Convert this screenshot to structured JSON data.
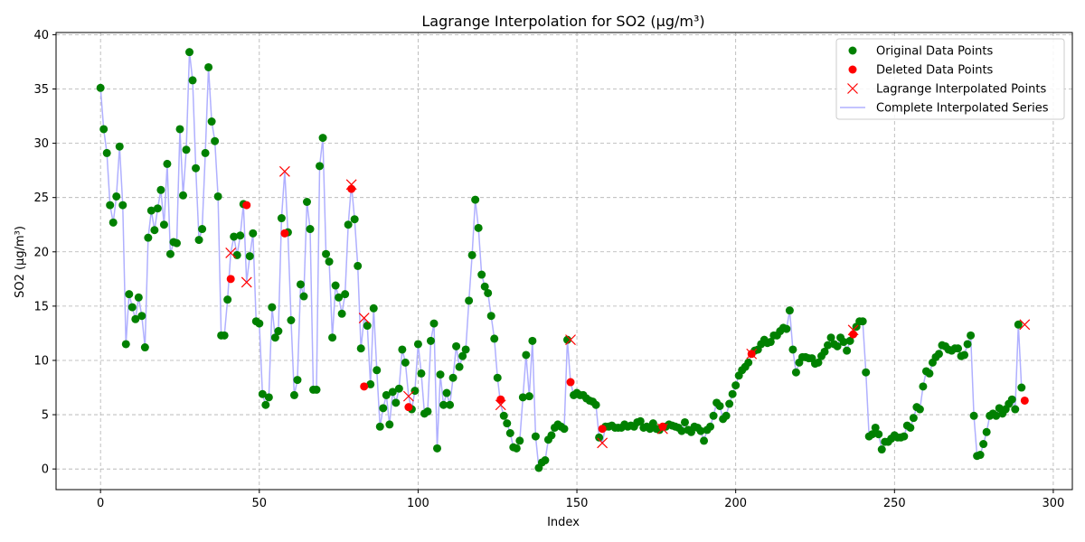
{
  "chart_data": {
    "type": "scatter",
    "title": "Lagrange Interpolation for SO2 (µg/m³)",
    "xlabel": "Index",
    "ylabel": "SO2 (µg/m³)",
    "xlim": [
      -14,
      306
    ],
    "ylim": [
      -1.9,
      40.2
    ],
    "x_ticks": [
      0,
      50,
      100,
      150,
      200,
      250,
      300
    ],
    "y_ticks": [
      0,
      5,
      10,
      15,
      20,
      25,
      30,
      35,
      40
    ],
    "grid": true,
    "legend_position": "top-right",
    "legend": [
      {
        "label": "Original Data Points",
        "color": "#008000",
        "marker": "circle"
      },
      {
        "label": "Deleted Data Points",
        "color": "#ff0000",
        "marker": "circle"
      },
      {
        "label": "Lagrange Interpolated Points",
        "color": "#ff0000",
        "marker": "x"
      },
      {
        "label": "Complete Interpolated Series",
        "color": "#b0b0ff",
        "marker": "line"
      }
    ],
    "series_values": [
      35.1,
      31.3,
      29.1,
      24.3,
      22.7,
      25.1,
      29.7,
      24.3,
      11.5,
      16.1,
      14.9,
      13.8,
      15.8,
      14.1,
      11.2,
      21.3,
      23.8,
      22.0,
      24.0,
      25.7,
      22.5,
      28.1,
      19.8,
      20.9,
      20.8,
      31.3,
      25.2,
      29.4,
      38.4,
      35.8,
      27.7,
      21.1,
      22.1,
      29.1,
      37.0,
      32.0,
      30.2,
      25.1,
      12.3,
      12.3,
      15.6,
      19.9,
      21.4,
      19.7,
      21.5,
      24.4,
      17.2,
      19.6,
      21.7,
      13.6,
      13.4,
      6.9,
      5.9,
      6.6,
      14.9,
      12.1,
      12.7,
      23.1,
      27.4,
      21.8,
      13.7,
      6.8,
      8.2,
      17.0,
      15.9,
      24.6,
      22.1,
      7.3,
      7.3,
      27.9,
      30.5,
      19.8,
      19.1,
      12.1,
      16.9,
      15.8,
      14.3,
      16.1,
      22.5,
      26.2,
      23.0,
      18.7,
      11.1,
      13.9,
      13.2,
      7.8,
      14.8,
      9.1,
      3.9,
      5.6,
      6.8,
      4.1,
      7.1,
      6.1,
      7.4,
      11.0,
      9.8,
      6.7,
      5.5,
      7.2,
      11.5,
      8.8,
      5.1,
      5.3,
      11.8,
      13.4,
      1.9,
      8.7,
      5.9,
      7.0,
      5.9,
      8.4,
      11.3,
      9.4,
      10.4,
      11.0,
      15.5,
      19.7,
      24.8,
      22.2,
      17.9,
      16.8,
      16.2,
      14.1,
      12.0,
      8.4,
      5.9,
      4.9,
      4.2,
      3.3,
      2.0,
      1.9,
      2.6,
      6.6,
      10.5,
      6.7,
      11.8,
      3.0,
      0.1,
      0.6,
      0.8,
      2.7,
      3.1,
      3.8,
      4.1,
      3.9,
      3.7,
      11.9,
      8.0,
      6.8,
      7.0,
      6.8,
      6.8,
      6.5,
      6.3,
      6.2,
      5.9,
      2.9,
      2.4,
      3.9,
      3.9,
      4.0,
      3.8,
      3.8,
      3.8,
      4.1,
      3.9,
      4.0,
      3.9,
      4.3,
      4.4,
      3.8,
      3.9,
      3.7,
      4.2,
      3.7,
      3.6,
      3.8,
      3.9,
      4.1,
      4.0,
      3.9,
      3.8,
      3.5,
      4.3,
      3.6,
      3.4,
      3.9,
      3.8,
      3.5,
      2.6,
      3.6,
      3.9,
      4.9,
      6.1,
      5.8,
      4.6,
      4.9,
      6.0,
      6.9,
      7.7,
      8.6,
      9.1,
      9.4,
      9.8,
      10.6,
      10.9,
      11.0,
      11.5,
      11.9,
      11.6,
      11.7,
      12.3,
      12.3,
      12.7,
      13.0,
      12.9,
      14.6,
      11.0,
      8.9,
      9.8,
      10.3,
      10.3,
      10.2,
      10.2,
      9.7,
      9.8,
      10.4,
      10.8,
      11.4,
      12.1,
      11.5,
      11.3,
      12.1,
      11.7,
      10.9,
      11.8,
      12.8,
      13.1,
      13.6,
      13.6,
      8.9,
      3.0,
      3.2,
      3.8,
      3.2,
      1.8,
      2.5,
      2.5,
      2.8,
      3.1,
      2.9,
      2.9,
      3.0,
      4.0,
      3.8,
      4.7,
      5.7,
      5.5,
      7.6,
      9.0,
      8.8,
      9.8,
      10.3,
      10.6,
      11.4,
      11.3,
      11.0,
      10.9,
      11.1,
      11.1,
      10.4,
      10.5,
      11.5,
      12.3,
      4.9,
      1.2,
      1.3,
      2.3,
      3.4,
      4.9,
      5.1,
      4.9,
      5.6,
      5.1,
      5.5,
      6.0,
      6.4,
      5.5,
      13.3,
      7.5
    ],
    "deleted_points": [
      {
        "x": 41,
        "y": 17.5
      },
      {
        "x": 46,
        "y": 24.3
      },
      {
        "x": 58,
        "y": 21.7
      },
      {
        "x": 79,
        "y": 25.8
      },
      {
        "x": 83,
        "y": 7.6
      },
      {
        "x": 97,
        "y": 5.7
      },
      {
        "x": 126,
        "y": 6.4
      },
      {
        "x": 148,
        "y": 8.0
      },
      {
        "x": 158,
        "y": 3.7
      },
      {
        "x": 177,
        "y": 3.9
      },
      {
        "x": 205,
        "y": 10.6
      },
      {
        "x": 237,
        "y": 12.4
      },
      {
        "x": 291,
        "y": 6.3
      }
    ],
    "interpolated_points": [
      {
        "x": 41,
        "y": 19.9
      },
      {
        "x": 46,
        "y": 17.2
      },
      {
        "x": 58,
        "y": 27.4
      },
      {
        "x": 79,
        "y": 26.2
      },
      {
        "x": 83,
        "y": 13.9
      },
      {
        "x": 97,
        "y": 6.7
      },
      {
        "x": 126,
        "y": 5.9
      },
      {
        "x": 148,
        "y": 11.9
      },
      {
        "x": 158,
        "y": 2.4
      },
      {
        "x": 177,
        "y": 3.7
      },
      {
        "x": 205,
        "y": 10.6
      },
      {
        "x": 237,
        "y": 12.8
      },
      {
        "x": 291,
        "y": 13.3
      }
    ]
  }
}
